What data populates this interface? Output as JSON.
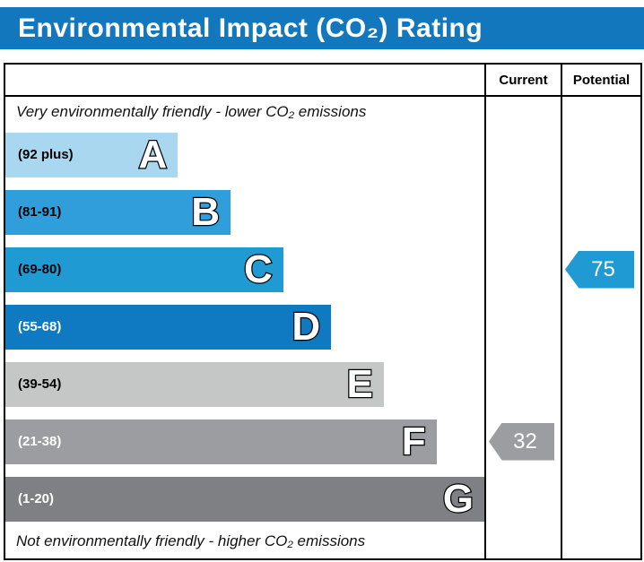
{
  "title": "Environmental Impact (CO₂) Rating",
  "chart_data": {
    "type": "bar",
    "title": "Environmental Impact (CO₂) Rating",
    "top_caption": "Very environmentally friendly - lower CO₂ emissions",
    "bottom_caption": "Not environmentally friendly - higher CO₂ emissions",
    "columns": {
      "current": "Current",
      "potential": "Potential"
    },
    "bands": [
      {
        "letter": "A",
        "range": "(92 plus)",
        "color": "#a9d7ef",
        "label_color": "#000000",
        "width_pct": 36
      },
      {
        "letter": "B",
        "range": "(81-91)",
        "color": "#2f9edb",
        "label_color": "#000000",
        "width_pct": 47
      },
      {
        "letter": "C",
        "range": "(69-80)",
        "color": "#1f9ad3",
        "label_color": "#000000",
        "width_pct": 58
      },
      {
        "letter": "D",
        "range": "(55-68)",
        "color": "#0f7ac2",
        "label_color": "#ffffff",
        "width_pct": 68
      },
      {
        "letter": "E",
        "range": "(39-54)",
        "color": "#c5c6c6",
        "label_color": "#000000",
        "width_pct": 79
      },
      {
        "letter": "F",
        "range": "(21-38)",
        "color": "#9c9da0",
        "label_color": "#ffffff",
        "width_pct": 90
      },
      {
        "letter": "G",
        "range": "(1-20)",
        "color": "#7e8083",
        "label_color": "#ffffff",
        "width_pct": 100
      }
    ],
    "current": {
      "value": "32",
      "band": "F",
      "color": "#9c9da0"
    },
    "potential": {
      "value": "75",
      "band": "C",
      "color": "#1f9ad3"
    },
    "colors": {
      "title_bg": "#1277bc",
      "title_text": "#ffffff",
      "border": "#000000"
    }
  }
}
